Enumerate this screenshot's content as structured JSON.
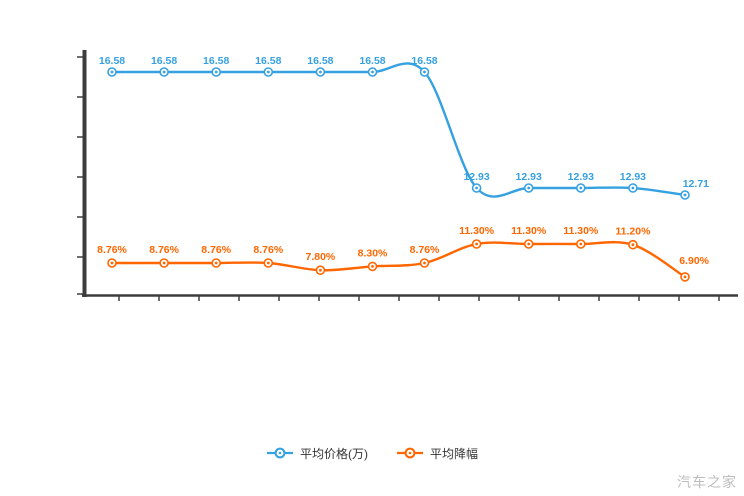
{
  "watermark": "汽车之家",
  "legend": [
    {
      "label": "平均价格(万)",
      "color": "#36a1e0",
      "icon": "line-dot-marker-blue"
    },
    {
      "label": "平均降幅",
      "color": "#ff6600",
      "icon": "line-dot-marker-orange"
    }
  ],
  "chart_data": {
    "type": "line",
    "title": "",
    "xlabel": "",
    "ylabel": "",
    "grid": false,
    "legend_position": "bottom",
    "x_axis": {
      "tick_labels_visible": false
    },
    "y_axis": {
      "tick_labels_visible": false
    },
    "categories": [
      "",
      "",
      "",
      "",
      "",
      "",
      "",
      "",
      "",
      "",
      "",
      ""
    ],
    "series": [
      {
        "name": "平均价格(万)",
        "unit": "万",
        "color": "#36a1e0",
        "values": [
          16.58,
          16.58,
          16.58,
          16.58,
          16.58,
          16.58,
          16.58,
          12.93,
          12.93,
          12.93,
          12.93,
          12.71
        ],
        "labels": [
          "16.58",
          "16.58",
          "16.58",
          "16.58",
          "16.58",
          "16.58",
          "16.58",
          "12.93",
          "12.93",
          "12.93",
          "12.93",
          "12.71"
        ]
      },
      {
        "name": "平均降幅",
        "unit": "%",
        "color": "#ff6600",
        "values": [
          8.76,
          8.76,
          8.76,
          8.76,
          7.8,
          8.3,
          8.76,
          11.3,
          11.3,
          11.3,
          11.2,
          6.9
        ],
        "labels": [
          "8.76%",
          "8.76%",
          "8.76%",
          "8.76%",
          "7.80%",
          "8.30%",
          "8.76%",
          "11.30%",
          "11.30%",
          "11.30%",
          "11.20%",
          "6.90%"
        ]
      }
    ]
  }
}
